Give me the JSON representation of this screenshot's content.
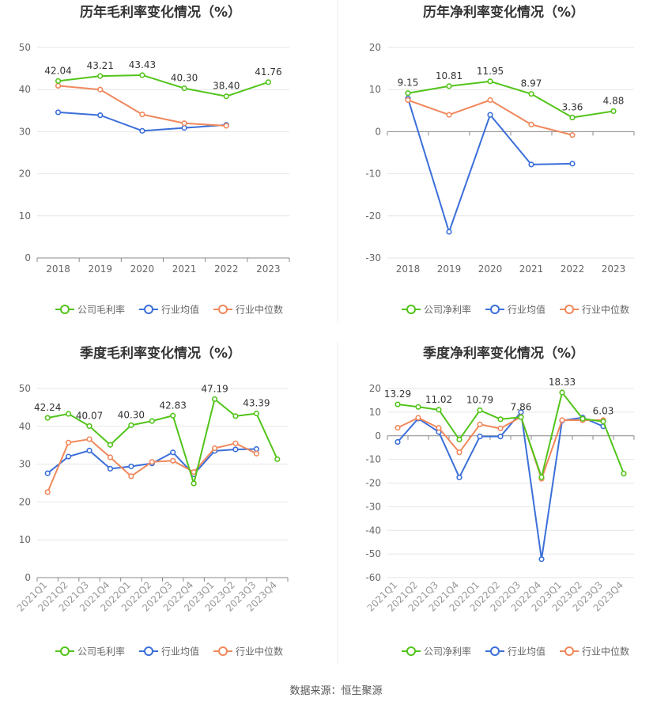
{
  "colors": {
    "company": "#52c41a",
    "avg": "#3b6fd9",
    "median": "#f0885c",
    "grid": "#e6e6e6",
    "axis": "#888888",
    "text": "#666666",
    "title": "#333333"
  },
  "source_text": "数据来源：恒生聚源",
  "chart_data": [
    {
      "type": "line",
      "title": "历年毛利率变化情况（%）",
      "categories": [
        "2018",
        "2019",
        "2020",
        "2021",
        "2022",
        "2023"
      ],
      "ylim": [
        0,
        50
      ],
      "yticks": [
        0,
        10,
        20,
        30,
        40,
        50
      ],
      "grid": true,
      "legend_position": "bottom",
      "series": [
        {
          "name": "公司毛利率",
          "values": [
            42.04,
            43.21,
            43.43,
            40.3,
            38.4,
            41.76
          ],
          "labels": [
            "42.04",
            "43.21",
            "43.43",
            "40.30",
            "38.40",
            "41.76"
          ]
        },
        {
          "name": "行业均值",
          "values": [
            34.6,
            33.9,
            30.2,
            30.9,
            31.6,
            null
          ]
        },
        {
          "name": "行业中位数",
          "values": [
            40.9,
            40.0,
            34.1,
            32.0,
            31.4,
            null
          ]
        }
      ]
    },
    {
      "type": "line",
      "title": "历年净利率变化情况（%）",
      "categories": [
        "2018",
        "2019",
        "2020",
        "2021",
        "2022",
        "2023"
      ],
      "ylim": [
        -30,
        20
      ],
      "yticks": [
        -30,
        -20,
        -10,
        0,
        10,
        20
      ],
      "grid": true,
      "legend_position": "bottom",
      "series": [
        {
          "name": "公司净利率",
          "values": [
            9.15,
            10.81,
            11.95,
            8.97,
            3.36,
            4.88
          ],
          "labels": [
            "9.15",
            "10.81",
            "11.95",
            "8.97",
            "3.36",
            "4.88"
          ]
        },
        {
          "name": "行业均值",
          "values": [
            7.9,
            -23.8,
            4.0,
            -7.8,
            -7.6,
            null
          ]
        },
        {
          "name": "行业中位数",
          "values": [
            7.5,
            4.0,
            7.5,
            1.7,
            -0.8,
            null
          ]
        }
      ]
    },
    {
      "type": "line",
      "title": "季度毛利率变化情况（%）",
      "categories": [
        "2021Q1",
        "2021Q2",
        "2021Q3",
        "2021Q4",
        "2022Q1",
        "2022Q2",
        "2022Q3",
        "2022Q4",
        "2023Q1",
        "2023Q2",
        "2023Q3",
        "2023Q4"
      ],
      "ylim": [
        0,
        50
      ],
      "yticks": [
        0,
        10,
        20,
        30,
        40,
        50
      ],
      "grid": true,
      "legend_position": "bottom",
      "series": [
        {
          "name": "公司毛利率",
          "values": [
            42.24,
            43.3,
            40.07,
            35.1,
            40.3,
            41.4,
            42.83,
            24.9,
            47.19,
            42.7,
            43.39,
            31.3
          ],
          "labels": [
            "42.24",
            null,
            "40.07",
            null,
            "40.30",
            null,
            "42.83",
            null,
            "47.19",
            null,
            "43.39",
            null
          ]
        },
        {
          "name": "行业均值",
          "values": [
            27.6,
            32.0,
            33.6,
            28.8,
            29.4,
            30.2,
            33.1,
            27.3,
            33.5,
            33.9,
            34.0,
            null
          ]
        },
        {
          "name": "行业中位数",
          "values": [
            22.6,
            35.7,
            36.6,
            31.8,
            26.8,
            30.6,
            30.9,
            27.9,
            34.2,
            35.5,
            32.8,
            null
          ]
        }
      ]
    },
    {
      "type": "line",
      "title": "季度净利率变化情况（%）",
      "categories": [
        "2021Q1",
        "2021Q2",
        "2021Q3",
        "2021Q4",
        "2022Q1",
        "2022Q2",
        "2022Q3",
        "2022Q4",
        "2023Q1",
        "2023Q2",
        "2023Q3",
        "2023Q4"
      ],
      "ylim": [
        -60,
        20
      ],
      "yticks": [
        -60,
        -50,
        -40,
        -30,
        -20,
        -10,
        0,
        10,
        20
      ],
      "grid": true,
      "legend_position": "bottom",
      "series": [
        {
          "name": "公司净利率",
          "values": [
            13.29,
            12.2,
            11.02,
            -1.6,
            10.79,
            7.0,
            7.86,
            -17.5,
            18.33,
            7.2,
            6.03,
            -16.0
          ],
          "labels": [
            "13.29",
            null,
            "11.02",
            null,
            "10.79",
            null,
            "7.86",
            null,
            "18.33",
            null,
            "6.03",
            null
          ]
        },
        {
          "name": "行业均值",
          "values": [
            -2.6,
            7.3,
            1.6,
            -17.6,
            -0.3,
            -0.3,
            10.0,
            -52.2,
            6.4,
            7.7,
            4.0,
            null
          ]
        },
        {
          "name": "行业中位数",
          "values": [
            3.4,
            7.6,
            3.3,
            -7.0,
            4.8,
            3.1,
            8.0,
            -18.2,
            6.6,
            6.6,
            6.6,
            null
          ]
        }
      ]
    }
  ]
}
